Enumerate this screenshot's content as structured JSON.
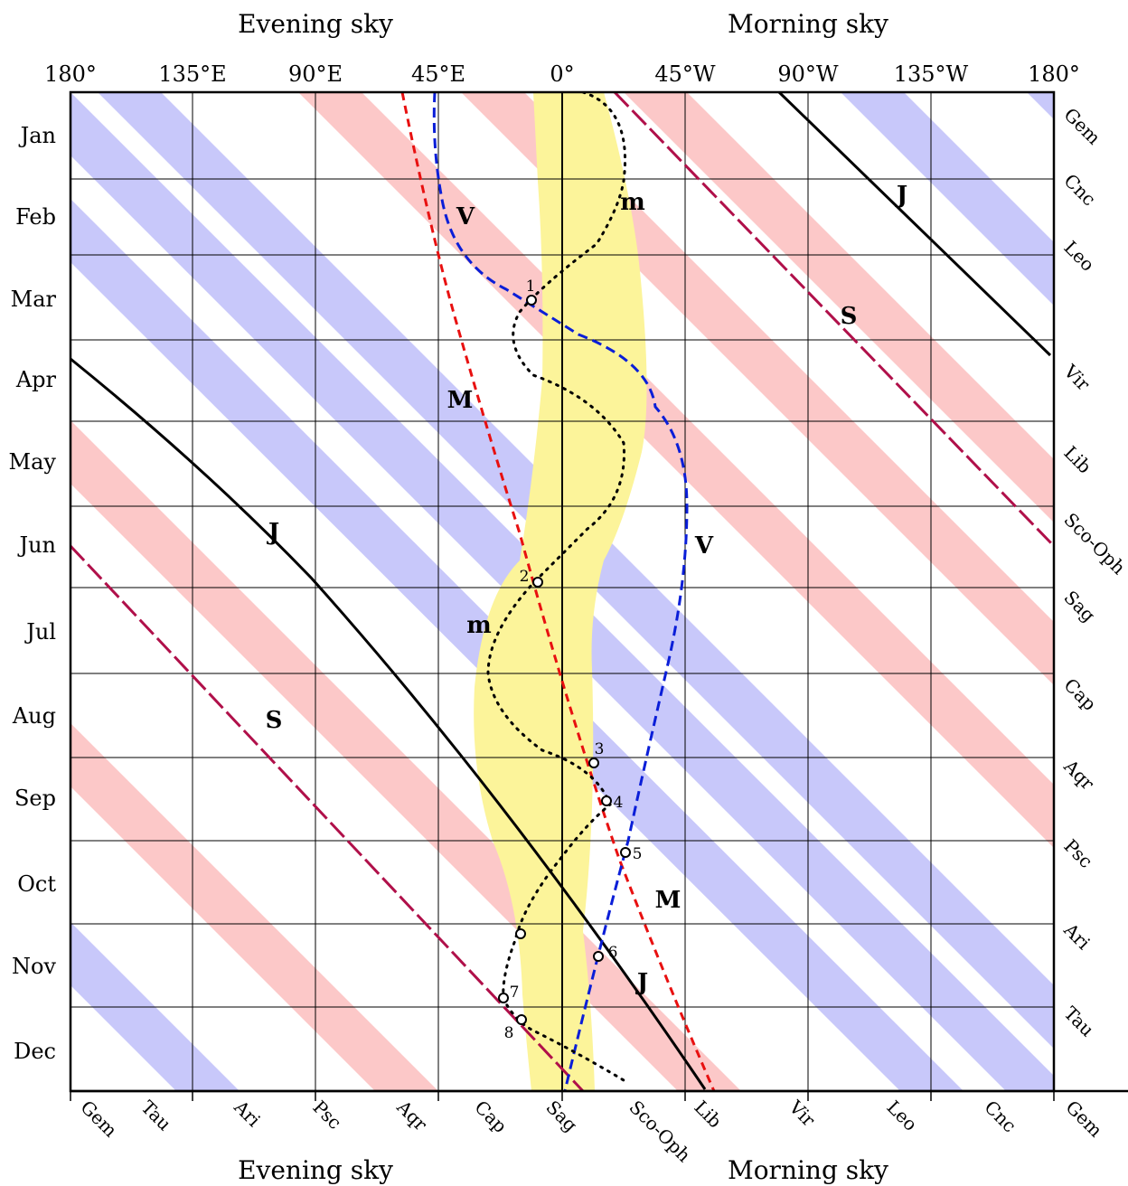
{
  "headers": {
    "top_left": "Evening sky",
    "top_right": "Morning sky",
    "bottom_left": "Evening sky",
    "bottom_right": "Morning sky"
  },
  "elongation_labels": [
    "180°",
    "135°E",
    "90°E",
    "45°E",
    "0°",
    "45°W",
    "90°W",
    "135°W",
    "180°"
  ],
  "months": [
    "Jan",
    "Feb",
    "Mar",
    "Apr",
    "May",
    "Jun",
    "Jul",
    "Aug",
    "Sep",
    "Oct",
    "Nov",
    "Dec"
  ],
  "right_constellations": [
    "Gem",
    "Cnc",
    "Leo",
    "Vir",
    "Lib",
    "Sco-Oph",
    "Sag",
    "Cap",
    "Aqr",
    "Psc",
    "Ari",
    "Tau"
  ],
  "bottom_constellations": [
    "Gem",
    "Tau",
    "Ari",
    "Psc",
    "Aqr",
    "Cap",
    "Sag",
    "Sco-Oph",
    "Lib",
    "Vir",
    "Leo",
    "Cnc",
    "Gem"
  ],
  "planet_labels": {
    "mercury": "m",
    "venus": "V",
    "mars": "M",
    "jupiter": "J",
    "saturn": "S"
  },
  "event_numbers": [
    "1",
    "2",
    "3",
    "4",
    "5",
    "6",
    "7",
    "8"
  ],
  "colors": {
    "pink_band": "#fcc8c8",
    "blue_band": "#c8c8fa",
    "sun_zone": "#fcf49a",
    "mercury": "#000000",
    "venus": "#0a1ed8",
    "mars": "#e81010",
    "jupiter": "#000000",
    "saturn": "#b0104a"
  }
}
